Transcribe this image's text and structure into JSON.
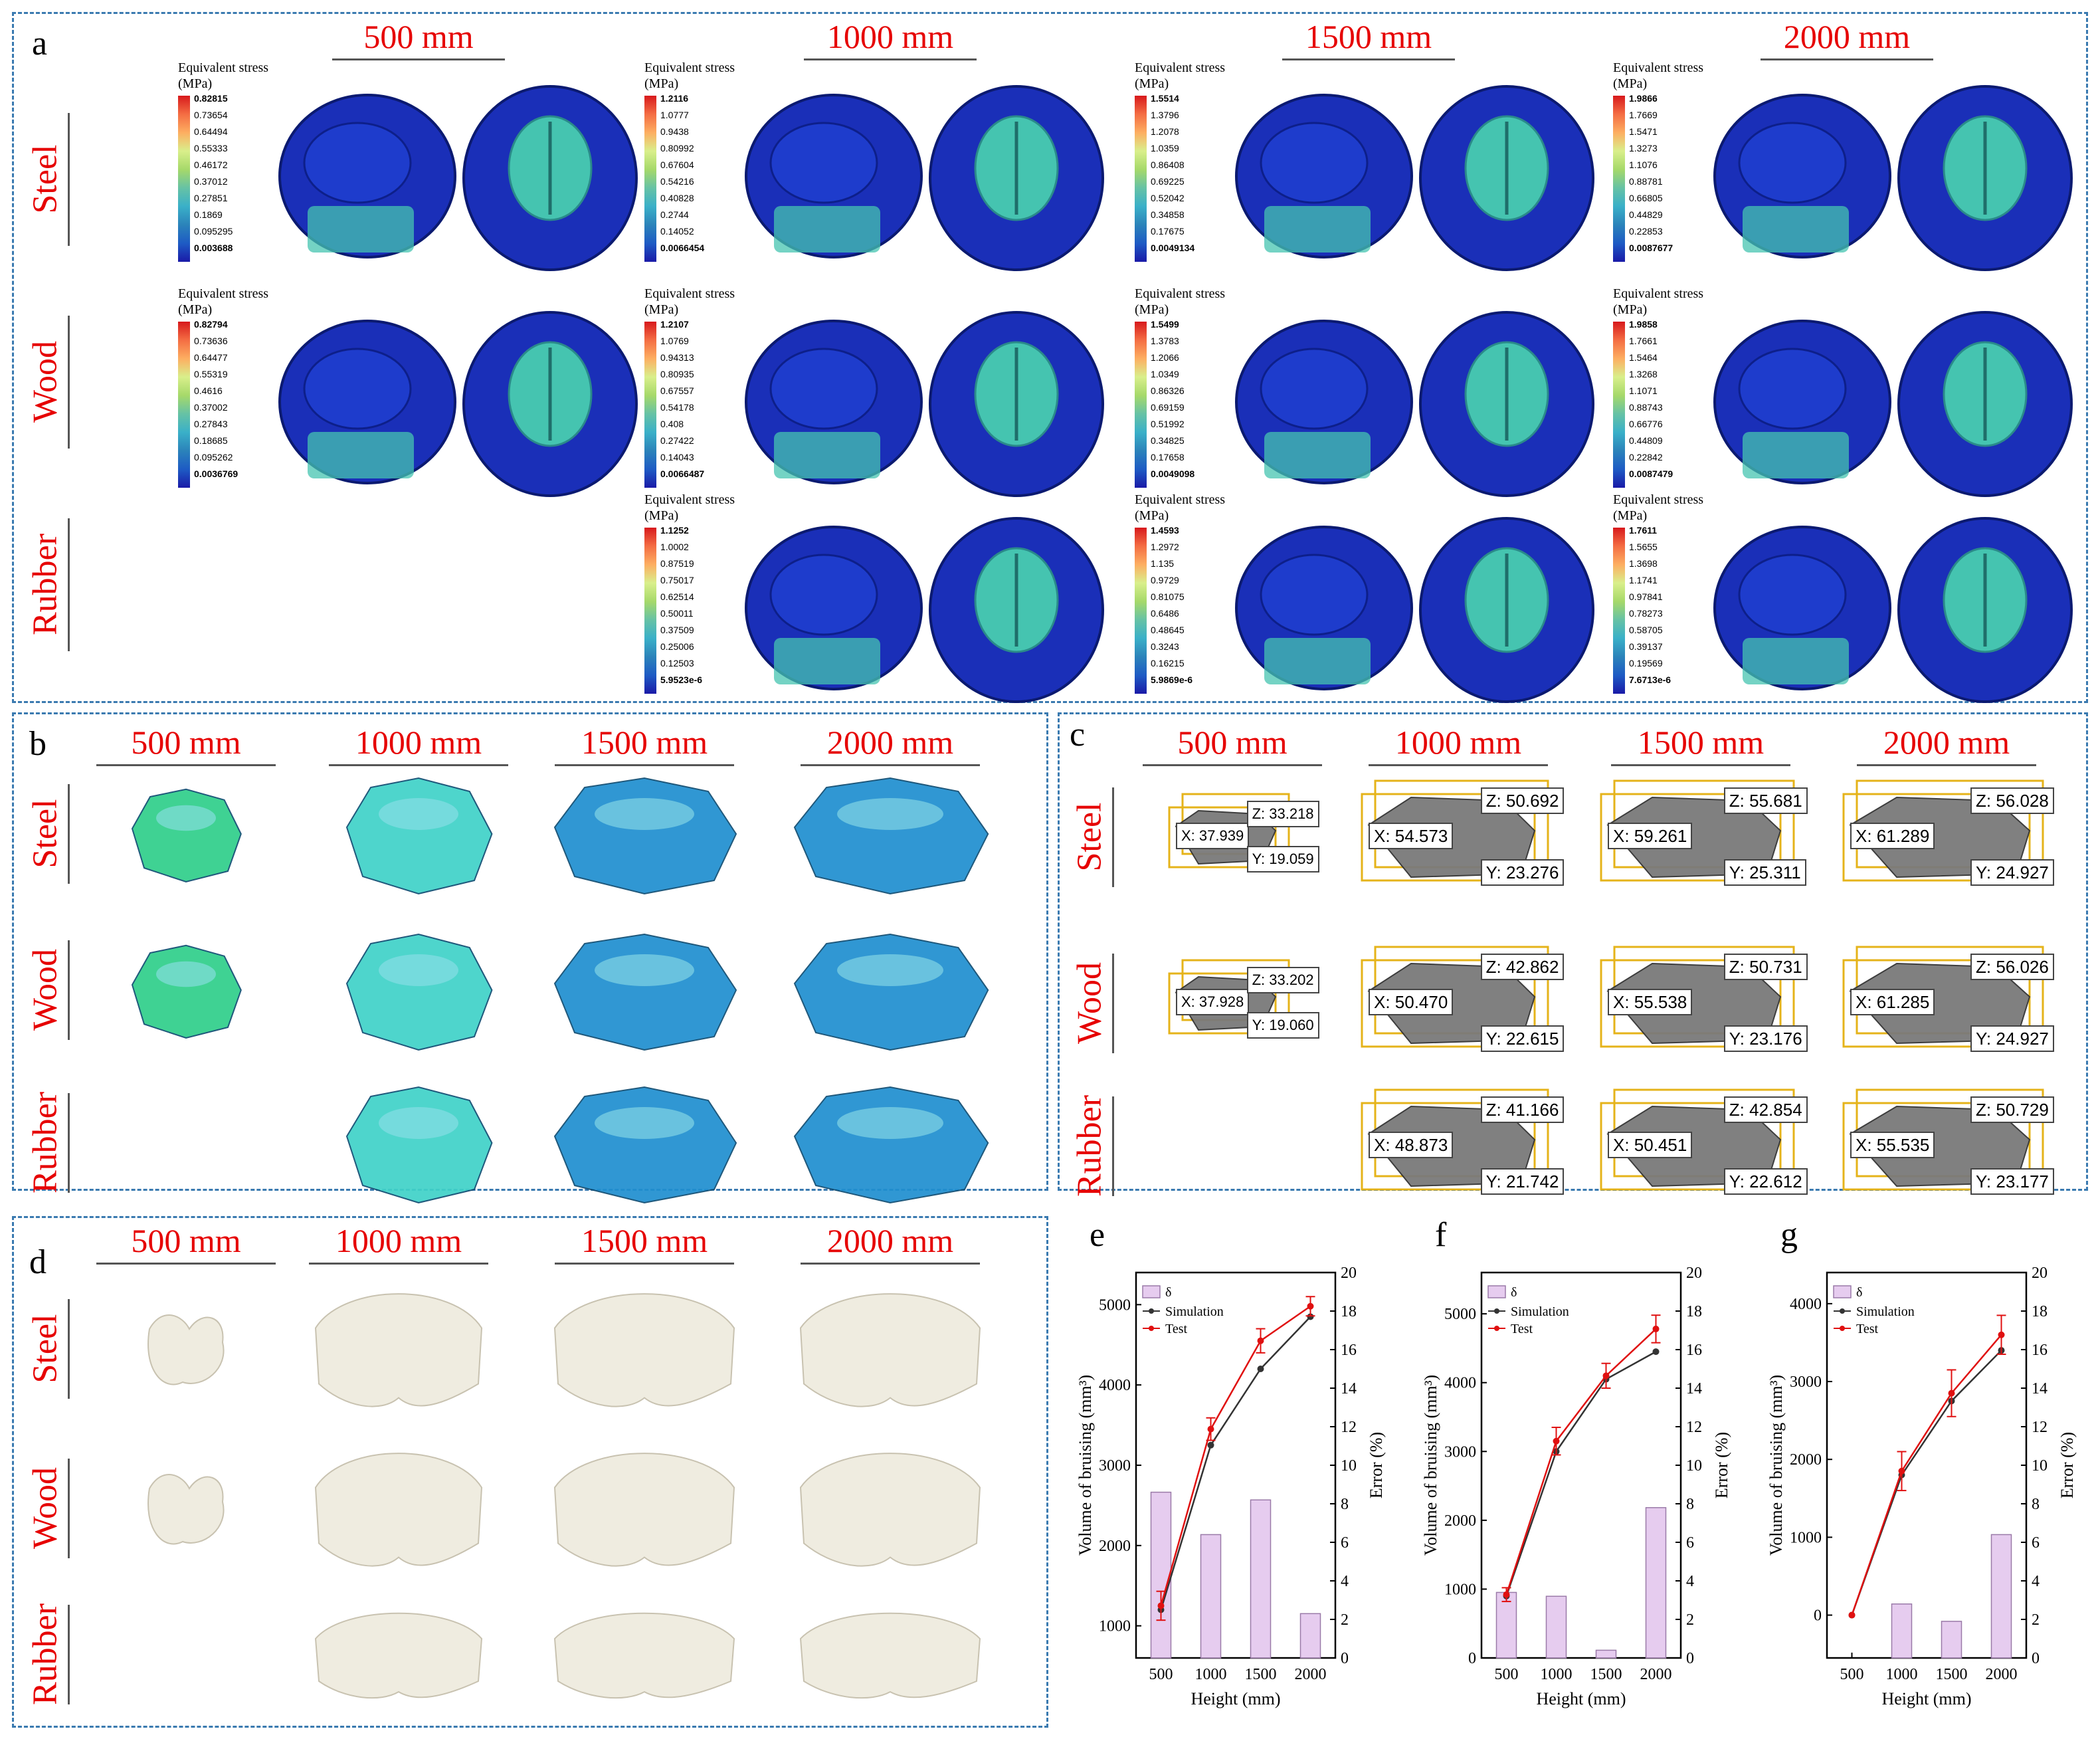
{
  "panels": {
    "a": {
      "label": "a",
      "heights": [
        "500 mm",
        "1000 mm",
        "1500 mm",
        "2000 mm"
      ],
      "materials": [
        "Steel",
        "Wood",
        "Rubber"
      ],
      "legend_title_1": "Equivalent stress",
      "legend_title_2": "(MPa)",
      "legends": {
        "steel_500": [
          "0.82815",
          "0.73654",
          "0.64494",
          "0.55333",
          "0.46172",
          "0.37012",
          "0.27851",
          "0.1869",
          "0.095295",
          "0.003688"
        ],
        "steel_1000": [
          "1.2116",
          "1.0777",
          "0.9438",
          "0.80992",
          "0.67604",
          "0.54216",
          "0.40828",
          "0.2744",
          "0.14052",
          "0.0066454"
        ],
        "steel_1500": [
          "1.5514",
          "1.3796",
          "1.2078",
          "1.0359",
          "0.86408",
          "0.69225",
          "0.52042",
          "0.34858",
          "0.17675",
          "0.0049134"
        ],
        "steel_2000": [
          "1.9866",
          "1.7669",
          "1.5471",
          "1.3273",
          "1.1076",
          "0.88781",
          "0.66805",
          "0.44829",
          "0.22853",
          "0.0087677"
        ],
        "wood_500": [
          "0.82794",
          "0.73636",
          "0.64477",
          "0.55319",
          "0.4616",
          "0.37002",
          "0.27843",
          "0.18685",
          "0.095262",
          "0.0036769"
        ],
        "wood_1000": [
          "1.2107",
          "1.0769",
          "0.94313",
          "0.80935",
          "0.67557",
          "0.54178",
          "0.408",
          "0.27422",
          "0.14043",
          "0.0066487"
        ],
        "wood_1500": [
          "1.5499",
          "1.3783",
          "1.2066",
          "1.0349",
          "0.86326",
          "0.69159",
          "0.51992",
          "0.34825",
          "0.17658",
          "0.0049098"
        ],
        "wood_2000": [
          "1.9858",
          "1.7661",
          "1.5464",
          "1.3268",
          "1.1071",
          "0.88743",
          "0.66776",
          "0.44809",
          "0.22842",
          "0.0087479"
        ],
        "rubber_1000": [
          "1.1252",
          "1.0002",
          "0.87519",
          "0.75017",
          "0.62514",
          "0.50011",
          "0.37509",
          "0.25006",
          "0.12503",
          "5.9523e-6"
        ],
        "rubber_1500": [
          "1.4593",
          "1.2972",
          "1.135",
          "0.9729",
          "0.81075",
          "0.6486",
          "0.48645",
          "0.3243",
          "0.16215",
          "5.9869e-6"
        ],
        "rubber_2000": [
          "1.7611",
          "1.5655",
          "1.3698",
          "1.1741",
          "0.97841",
          "0.78273",
          "0.58705",
          "0.39137",
          "0.19569",
          "7.6713e-6"
        ]
      }
    },
    "b": {
      "label": "b",
      "heights": [
        "500 mm",
        "1000 mm",
        "1500 mm",
        "2000 mm"
      ],
      "materials": [
        "Steel",
        "Wood",
        "Rubber"
      ]
    },
    "c": {
      "label": "c",
      "heights": [
        "500 mm",
        "1000 mm",
        "1500 mm",
        "2000 mm"
      ],
      "materials": [
        "Steel",
        "Wood",
        "Rubber"
      ],
      "dims": {
        "steel_500": {
          "x": "X: 37.939",
          "y": "Y: 19.059",
          "z": "Z: 33.218"
        },
        "steel_1000": {
          "x": "X: 54.573",
          "y": "Y: 23.276",
          "z": "Z: 50.692"
        },
        "steel_1500": {
          "x": "X: 59.261",
          "y": "Y: 25.311",
          "z": "Z: 55.681"
        },
        "steel_2000": {
          "x": "X: 61.289",
          "y": "Y: 24.927",
          "z": "Z: 56.028"
        },
        "wood_500": {
          "x": "X: 37.928",
          "y": "Y: 19.060",
          "z": "Z: 33.202"
        },
        "wood_1000": {
          "x": "X: 50.470",
          "y": "Y: 22.615",
          "z": "Z: 42.862"
        },
        "wood_1500": {
          "x": "X: 55.538",
          "y": "Y: 23.176",
          "z": "Z: 50.731"
        },
        "wood_2000": {
          "x": "X: 61.285",
          "y": "Y: 24.927",
          "z": "Z: 56.026"
        },
        "rubber_1000": {
          "x": "X: 48.873",
          "y": "Y: 21.742",
          "z": "Z: 41.166"
        },
        "rubber_1500": {
          "x": "X: 50.451",
          "y": "Y: 22.612",
          "z": "Z: 42.854"
        },
        "rubber_2000": {
          "x": "X: 55.535",
          "y": "Y: 23.177",
          "z": "Z: 50.729"
        }
      }
    },
    "d": {
      "label": "d",
      "heights": [
        "500 mm",
        "1000 mm",
        "1500 mm",
        "2000 mm"
      ],
      "materials": [
        "Steel",
        "Wood",
        "Rubber"
      ]
    }
  },
  "colors": {
    "title_red": "#e60000",
    "border_blue": "#3a7ab0",
    "fruit_blue": "#1a2fb8",
    "core_cyan": "#45c4b0",
    "bruise_green": "#2fcf8a",
    "bruise_teal": "#40d2c8",
    "bruise_blue": "#1f8fd0",
    "scan_gray": "#7a7a7a",
    "box_yellow": "#e5b31a",
    "pulp_white": "#efece0",
    "bar_pink": "#e6ccef",
    "sim_line": "#333333",
    "test_line": "#e01010"
  },
  "chart_data": [
    {
      "label": "e",
      "type": "bar+line",
      "categories": [
        "500",
        "1000",
        "1500",
        "2000"
      ],
      "xlabel": "Height (mm)",
      "ylabel": "Volume of bruising (mm³)",
      "y2label": "Error (%)",
      "ylim": [
        600,
        5400
      ],
      "yticks": [
        1000,
        2000,
        3000,
        4000,
        5000
      ],
      "y2lim": [
        0,
        20
      ],
      "y2ticks": [
        0,
        2,
        4,
        6,
        8,
        10,
        12,
        14,
        16,
        18,
        20
      ],
      "legend": [
        "δ",
        "Simulation",
        "Test"
      ],
      "series": [
        {
          "name": "δ",
          "kind": "bar",
          "axis": "right",
          "values": [
            8.6,
            6.4,
            8.2,
            2.3
          ]
        },
        {
          "name": "Simulation",
          "kind": "line",
          "values": [
            1200,
            3250,
            4200,
            4850
          ]
        },
        {
          "name": "Test",
          "kind": "line",
          "values": [
            1250,
            3450,
            4550,
            4980
          ],
          "errors": [
            180,
            140,
            150,
            120
          ]
        }
      ]
    },
    {
      "label": "f",
      "type": "bar+line",
      "categories": [
        "500",
        "1000",
        "1500",
        "2000"
      ],
      "xlabel": "Height (mm)",
      "ylabel": "Volume of bruising (mm³)",
      "y2label": "Error (%)",
      "ylim": [
        0,
        5600
      ],
      "yticks": [
        0,
        1000,
        2000,
        3000,
        4000,
        5000
      ],
      "y2lim": [
        0,
        20
      ],
      "y2ticks": [
        0,
        2,
        4,
        6,
        8,
        10,
        12,
        14,
        16,
        18,
        20
      ],
      "legend": [
        "δ",
        "Simulation",
        "Test"
      ],
      "series": [
        {
          "name": "δ",
          "kind": "bar",
          "axis": "right",
          "values": [
            3.4,
            3.2,
            0.4,
            7.8
          ]
        },
        {
          "name": "Simulation",
          "kind": "line",
          "values": [
            900,
            3000,
            4050,
            4450
          ]
        },
        {
          "name": "Test",
          "kind": "line",
          "values": [
            920,
            3150,
            4100,
            4780
          ],
          "errors": [
            100,
            200,
            180,
            200
          ]
        }
      ]
    },
    {
      "label": "g",
      "type": "bar+line",
      "categories": [
        "500",
        "1000",
        "1500",
        "2000"
      ],
      "xlabel": "Height (mm)",
      "ylabel": "Volume of bruising (mm³)",
      "y2label": "Error (%)",
      "ylim": [
        -550,
        4400
      ],
      "yticks": [
        0,
        1000,
        2000,
        3000,
        4000
      ],
      "y2lim": [
        0,
        20
      ],
      "y2ticks": [
        0,
        2,
        4,
        6,
        8,
        10,
        12,
        14,
        16,
        18,
        20
      ],
      "legend": [
        "δ",
        "Simulation",
        "Test"
      ],
      "series": [
        {
          "name": "δ",
          "kind": "bar",
          "axis": "right",
          "values": [
            0,
            2.8,
            1.9,
            6.4
          ]
        },
        {
          "name": "Simulation",
          "kind": "line",
          "values": [
            0,
            1800,
            2750,
            3400
          ]
        },
        {
          "name": "Test",
          "kind": "line",
          "values": [
            0,
            1850,
            2850,
            3600
          ],
          "errors": [
            0,
            250,
            300,
            250
          ]
        }
      ]
    }
  ]
}
